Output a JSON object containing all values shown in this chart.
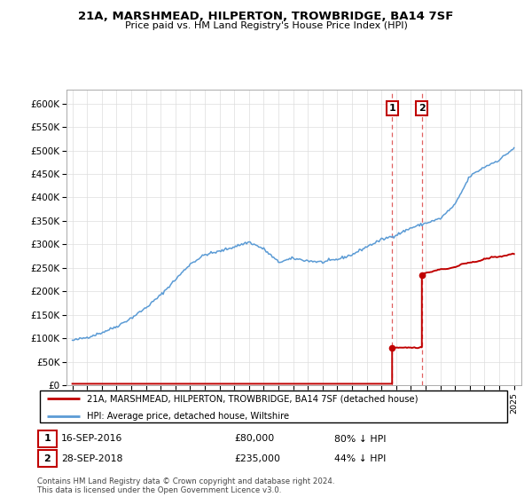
{
  "title": "21A, MARSHMEAD, HILPERTON, TROWBRIDGE, BA14 7SF",
  "subtitle": "Price paid vs. HM Land Registry's House Price Index (HPI)",
  "hpi_color": "#5b9bd5",
  "price_color": "#c00000",
  "dashed_color": "#e06060",
  "annotation_box_color": "#c00000",
  "purchase1_date": 2016.72,
  "purchase1_price": 80000,
  "purchase2_date": 2018.74,
  "purchase2_price": 235000,
  "legend_entry1": "21A, MARSHMEAD, HILPERTON, TROWBRIDGE, BA14 7SF (detached house)",
  "legend_entry2": "HPI: Average price, detached house, Wiltshire",
  "table_row1": [
    "1",
    "16-SEP-2016",
    "£80,000",
    "80% ↓ HPI"
  ],
  "table_row2": [
    "2",
    "28-SEP-2018",
    "£235,000",
    "44% ↓ HPI"
  ],
  "footnote": "Contains HM Land Registry data © Crown copyright and database right 2024.\nThis data is licensed under the Open Government Licence v3.0.",
  "xmin": 1994.6,
  "xmax": 2025.5,
  "ymin": 0,
  "ymax": 630000,
  "yticks": [
    0,
    50000,
    100000,
    150000,
    200000,
    250000,
    300000,
    350000,
    400000,
    450000,
    500000,
    550000,
    600000
  ]
}
